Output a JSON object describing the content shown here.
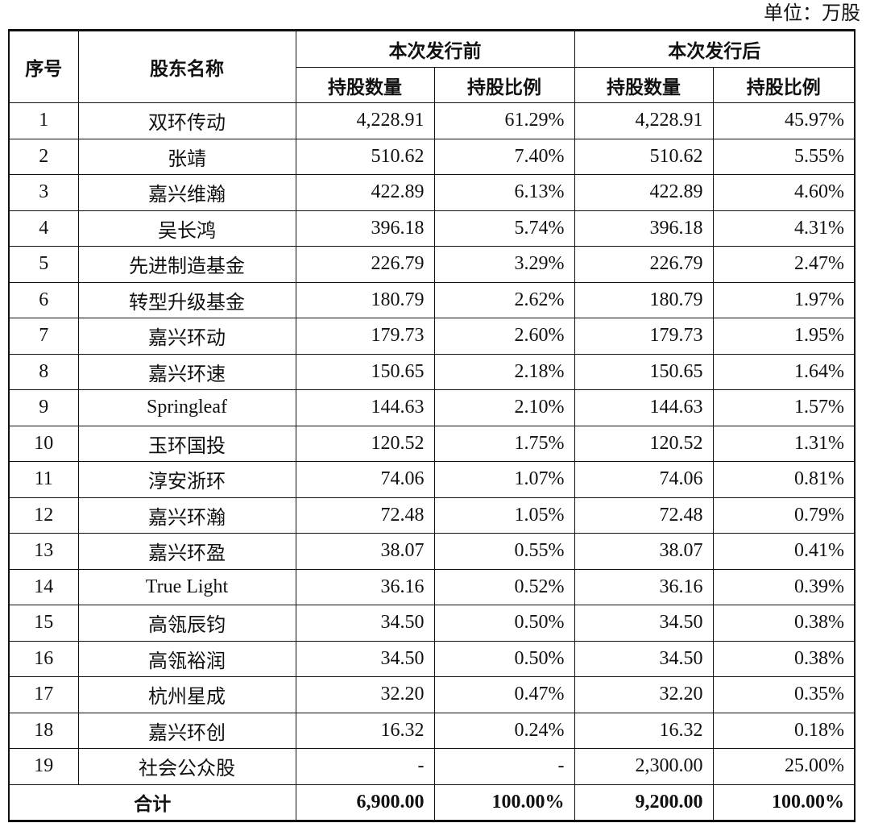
{
  "unit": "单位：万股",
  "header": {
    "index": "序号",
    "name": "股东名称",
    "before": "本次发行前",
    "after": "本次发行后",
    "shares": "持股数量",
    "ratio": "持股比例"
  },
  "rows": [
    {
      "idx": "1",
      "name": "双环传动",
      "before_shares": "4,228.91",
      "before_ratio": "61.29%",
      "after_shares": "4,228.91",
      "after_ratio": "45.97%"
    },
    {
      "idx": "2",
      "name": "张靖",
      "before_shares": "510.62",
      "before_ratio": "7.40%",
      "after_shares": "510.62",
      "after_ratio": "5.55%"
    },
    {
      "idx": "3",
      "name": "嘉兴维瀚",
      "before_shares": "422.89",
      "before_ratio": "6.13%",
      "after_shares": "422.89",
      "after_ratio": "4.60%"
    },
    {
      "idx": "4",
      "name": "吴长鸿",
      "before_shares": "396.18",
      "before_ratio": "5.74%",
      "after_shares": "396.18",
      "after_ratio": "4.31%"
    },
    {
      "idx": "5",
      "name": "先进制造基金",
      "before_shares": "226.79",
      "before_ratio": "3.29%",
      "after_shares": "226.79",
      "after_ratio": "2.47%"
    },
    {
      "idx": "6",
      "name": "转型升级基金",
      "before_shares": "180.79",
      "before_ratio": "2.62%",
      "after_shares": "180.79",
      "after_ratio": "1.97%"
    },
    {
      "idx": "7",
      "name": "嘉兴环动",
      "before_shares": "179.73",
      "before_ratio": "2.60%",
      "after_shares": "179.73",
      "after_ratio": "1.95%"
    },
    {
      "idx": "8",
      "name": "嘉兴环速",
      "before_shares": "150.65",
      "before_ratio": "2.18%",
      "after_shares": "150.65",
      "after_ratio": "1.64%"
    },
    {
      "idx": "9",
      "name": "Springleaf",
      "before_shares": "144.63",
      "before_ratio": "2.10%",
      "after_shares": "144.63",
      "after_ratio": "1.57%"
    },
    {
      "idx": "10",
      "name": "玉环国投",
      "before_shares": "120.52",
      "before_ratio": "1.75%",
      "after_shares": "120.52",
      "after_ratio": "1.31%"
    },
    {
      "idx": "11",
      "name": "淳安浙环",
      "before_shares": "74.06",
      "before_ratio": "1.07%",
      "after_shares": "74.06",
      "after_ratio": "0.81%"
    },
    {
      "idx": "12",
      "name": "嘉兴环瀚",
      "before_shares": "72.48",
      "before_ratio": "1.05%",
      "after_shares": "72.48",
      "after_ratio": "0.79%"
    },
    {
      "idx": "13",
      "name": "嘉兴环盈",
      "before_shares": "38.07",
      "before_ratio": "0.55%",
      "after_shares": "38.07",
      "after_ratio": "0.41%"
    },
    {
      "idx": "14",
      "name": "True Light",
      "before_shares": "36.16",
      "before_ratio": "0.52%",
      "after_shares": "36.16",
      "after_ratio": "0.39%"
    },
    {
      "idx": "15",
      "name": "高瓴辰钧",
      "before_shares": "34.50",
      "before_ratio": "0.50%",
      "after_shares": "34.50",
      "after_ratio": "0.38%"
    },
    {
      "idx": "16",
      "name": "高瓴裕润",
      "before_shares": "34.50",
      "before_ratio": "0.50%",
      "after_shares": "34.50",
      "after_ratio": "0.38%"
    },
    {
      "idx": "17",
      "name": "杭州星成",
      "before_shares": "32.20",
      "before_ratio": "0.47%",
      "after_shares": "32.20",
      "after_ratio": "0.35%"
    },
    {
      "idx": "18",
      "name": "嘉兴环创",
      "before_shares": "16.32",
      "before_ratio": "0.24%",
      "after_shares": "16.32",
      "after_ratio": "0.18%"
    },
    {
      "idx": "19",
      "name": "社会公众股",
      "before_shares": "-",
      "before_ratio": "-",
      "after_shares": "2,300.00",
      "after_ratio": "25.00%"
    }
  ],
  "total": {
    "label": "合计",
    "before_shares": "6,900.00",
    "before_ratio": "100.00%",
    "after_shares": "9,200.00",
    "after_ratio": "100.00%"
  }
}
